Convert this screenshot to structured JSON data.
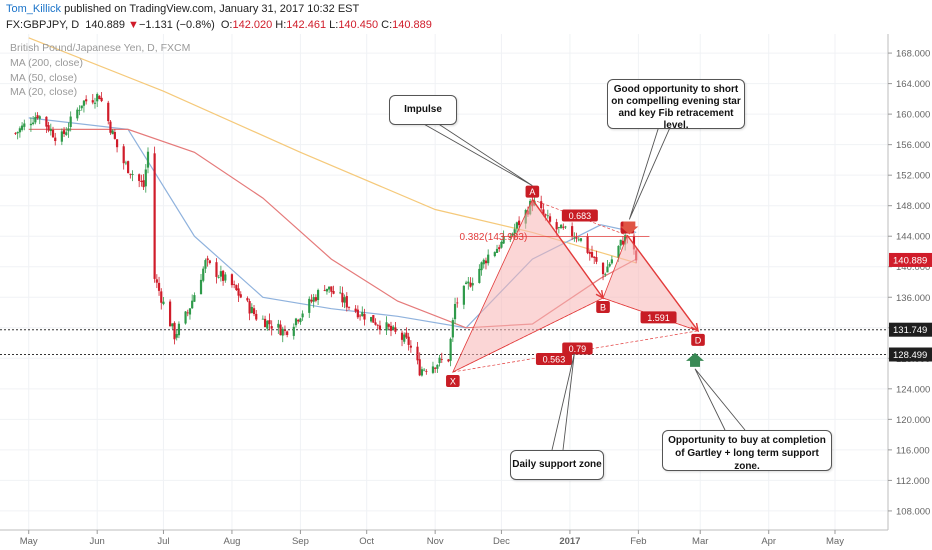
{
  "header": {
    "author": "Tom_Killick",
    "published": " published on TradingView.com, January 31, 2017 10:32 EST",
    "symbol": "FX:GBPJPY, D",
    "last": "140.889",
    "change_arrow": "▼",
    "change": "−1.131 (−0.8%)",
    "open_label": "O:",
    "open": "142.020",
    "high_label": "H:",
    "high": "142.461",
    "low_label": "L:",
    "low": "140.450",
    "close_label": "C:",
    "close": "140.889"
  },
  "legend": {
    "instrument": "British Pound/Japanese Yen, D, FXCM",
    "ma200": "MA (200, close)",
    "ma50": "MA (50, close)",
    "ma20": "MA (20, close)"
  },
  "callouts": {
    "impulse": "Impulse",
    "short": "Good opportunity to short on compelling evening star and key Fib retracement level.",
    "support": "Daily support zone",
    "buy": "Opportunity to buy at completion of Gartley + long term support zone."
  },
  "colors": {
    "bull": "#2e9a4a",
    "bear": "#d01c2a",
    "ma200": "#f5c97a",
    "ma50": "#8fb2dd",
    "ma20": "#e57a7a",
    "pattern_fill": "#f7b4b4",
    "pattern_line": "#e23b3b",
    "price_tag": "#d01c2a",
    "level_tag": "#1f1f1f"
  },
  "chart_data": {
    "type": "candlestick",
    "y_axis": {
      "range": [
        105.5,
        170.5
      ],
      "ticks": [
        108,
        112,
        116,
        120,
        124,
        128,
        132,
        136,
        140,
        144,
        148,
        152,
        156,
        160,
        164,
        168
      ]
    },
    "x_axis": {
      "ticks": [
        {
          "label": "May",
          "date": "2016-05-01"
        },
        {
          "label": "Jun",
          "date": "2016-06-01"
        },
        {
          "label": "Jul",
          "date": "2016-07-01"
        },
        {
          "label": "Aug",
          "date": "2016-08-01"
        },
        {
          "label": "Sep",
          "date": "2016-09-01"
        },
        {
          "label": "Oct",
          "date": "2016-10-01"
        },
        {
          "label": "Nov",
          "date": "2016-11-01"
        },
        {
          "label": "Dec",
          "date": "2016-12-01"
        },
        {
          "label": "2017",
          "date": "2017-01-01"
        },
        {
          "label": "Feb",
          "date": "2017-02-01"
        },
        {
          "label": "Mar",
          "date": "2017-03-01"
        },
        {
          "label": "Apr",
          "date": "2017-04-01"
        },
        {
          "label": "May",
          "date": "2017-05-01"
        }
      ]
    },
    "price_path": [
      {
        "date": "2016-04-25",
        "price": 157.5
      },
      {
        "date": "2016-05-05",
        "price": 160.0
      },
      {
        "date": "2016-05-15",
        "price": 156.5
      },
      {
        "date": "2016-05-25",
        "price": 161.5
      },
      {
        "date": "2016-06-02",
        "price": 162.5
      },
      {
        "date": "2016-06-12",
        "price": 154.0
      },
      {
        "date": "2016-06-22",
        "price": 150.5
      },
      {
        "date": "2016-06-24",
        "price": 155.0
      },
      {
        "date": "2016-06-27",
        "price": 138.5
      },
      {
        "date": "2016-07-06",
        "price": 131.0
      },
      {
        "date": "2016-07-12",
        "price": 134.0
      },
      {
        "date": "2016-07-20",
        "price": 140.5
      },
      {
        "date": "2016-08-01",
        "price": 137.5
      },
      {
        "date": "2016-08-12",
        "price": 133.5
      },
      {
        "date": "2016-08-25",
        "price": 131.5
      },
      {
        "date": "2016-09-12",
        "price": 137.5
      },
      {
        "date": "2016-09-25",
        "price": 134.5
      },
      {
        "date": "2016-10-10",
        "price": 132.0
      },
      {
        "date": "2016-10-20",
        "price": 130.0
      },
      {
        "date": "2016-10-25",
        "price": 126.5
      },
      {
        "date": "2016-11-07",
        "price": 128.0
      },
      {
        "date": "2016-11-10",
        "price": 135.0
      },
      {
        "date": "2016-11-25",
        "price": 141.5
      },
      {
        "date": "2016-12-05",
        "price": 144.0
      },
      {
        "date": "2016-12-15",
        "price": 148.5
      },
      {
        "date": "2016-12-25",
        "price": 145.0
      },
      {
        "date": "2017-01-05",
        "price": 144.0
      },
      {
        "date": "2017-01-16",
        "price": 139.0
      },
      {
        "date": "2017-01-25",
        "price": 143.5
      },
      {
        "date": "2017-01-27",
        "price": 144.0
      },
      {
        "date": "2017-01-31",
        "price": 140.9
      }
    ],
    "moving_averages": [
      {
        "name": "MA (200, close)",
        "points": [
          {
            "date": "2016-05-01",
            "price": 170.0
          },
          {
            "date": "2016-07-01",
            "price": 163.0
          },
          {
            "date": "2016-09-01",
            "price": 155.0
          },
          {
            "date": "2016-11-01",
            "price": 147.5
          },
          {
            "date": "2016-12-15",
            "price": 144.5
          },
          {
            "date": "2017-01-31",
            "price": 140.5
          }
        ]
      },
      {
        "name": "MA (50, close)",
        "points": [
          {
            "date": "2016-05-01",
            "price": 159.5
          },
          {
            "date": "2016-06-15",
            "price": 158.0
          },
          {
            "date": "2016-07-15",
            "price": 144.0
          },
          {
            "date": "2016-08-15",
            "price": 136.0
          },
          {
            "date": "2016-09-15",
            "price": 134.5
          },
          {
            "date": "2016-10-15",
            "price": 133.5
          },
          {
            "date": "2016-11-15",
            "price": 132.0
          },
          {
            "date": "2016-12-15",
            "price": 141.0
          },
          {
            "date": "2017-01-15",
            "price": 145.5
          },
          {
            "date": "2017-01-31",
            "price": 144.5
          }
        ]
      },
      {
        "name": "MA (20, close)",
        "points": [
          {
            "date": "2016-05-01",
            "price": 158.0
          },
          {
            "date": "2016-06-15",
            "price": 158.0
          },
          {
            "date": "2016-07-15",
            "price": 155.0
          },
          {
            "date": "2016-08-15",
            "price": 149.0
          },
          {
            "date": "2016-09-15",
            "price": 141.0
          },
          {
            "date": "2016-10-15",
            "price": 135.5
          },
          {
            "date": "2016-11-15",
            "price": 132.0
          },
          {
            "date": "2016-12-15",
            "price": 132.5
          },
          {
            "date": "2017-01-15",
            "price": 138.5
          },
          {
            "date": "2017-01-31",
            "price": 141.0
          }
        ]
      }
    ],
    "pattern_points": [
      {
        "label": "X",
        "date": "2016-11-09",
        "price": 126.2
      },
      {
        "label": "A",
        "date": "2016-12-15",
        "price": 148.8
      },
      {
        "label": "B",
        "date": "2017-01-16",
        "price": 135.9
      },
      {
        "label": "C",
        "date": "2017-01-27",
        "price": 144.1
      },
      {
        "label": "D",
        "date": "2017-02-28",
        "price": 131.6
      }
    ],
    "fib_labels": {
      "xb": "0.563",
      "ac": "0.683",
      "bd": "1.591",
      "xd": "0.79",
      "retracement": "0.382(143.983)",
      "retracement_price": 143.983
    },
    "support_lines": [
      131.749,
      128.499
    ],
    "price_tags": [
      {
        "value": "140.889",
        "price": 140.889,
        "style": "current"
      },
      {
        "value": "131.749",
        "price": 131.749,
        "style": "level"
      },
      {
        "value": "128.499",
        "price": 128.499,
        "style": "level"
      }
    ]
  }
}
